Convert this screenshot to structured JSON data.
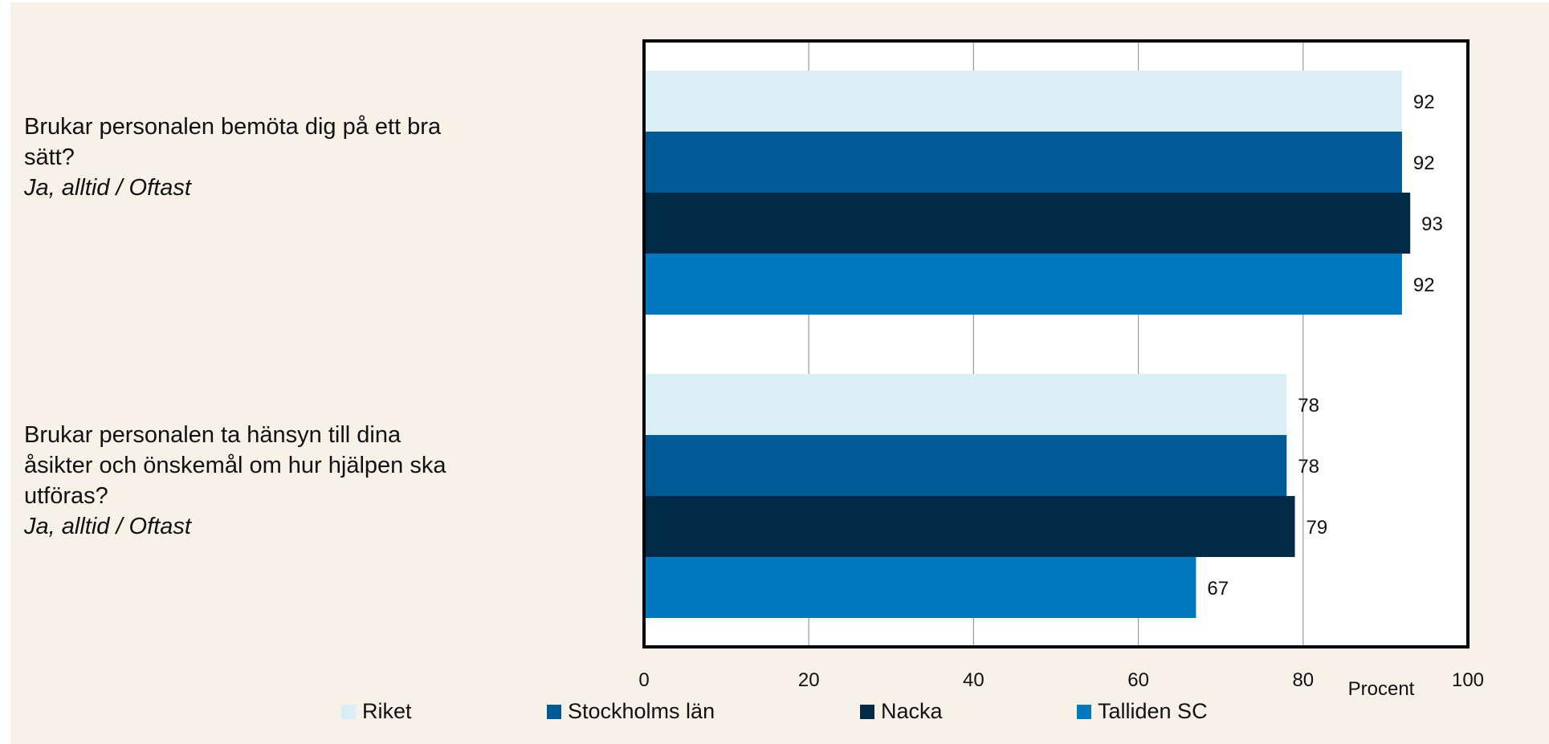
{
  "chart_data": {
    "type": "bar",
    "orientation": "horizontal",
    "categories": [
      {
        "title": "Brukar personalen bemöta dig på ett bra sätt?",
        "subtitle": "Ja, alltid / Oftast"
      },
      {
        "title": "Brukar personalen ta hänsyn till dina åsikter och önskemål om hur hjälpen ska utföras?",
        "subtitle": "Ja, alltid / Oftast"
      }
    ],
    "series": [
      {
        "name": "Riket",
        "color": "#daeef6",
        "values": [
          92,
          78
        ]
      },
      {
        "name": "Stockholms län",
        "color": "#005a96",
        "values": [
          92,
          78
        ]
      },
      {
        "name": "Nacka",
        "color": "#002a45",
        "values": [
          93,
          79
        ]
      },
      {
        "name": "Talliden SC",
        "color": "#0079c1",
        "values": [
          92,
          67
        ]
      }
    ],
    "xlabel": "Procent",
    "xlim": [
      0,
      100
    ],
    "xticks": [
      0,
      20,
      40,
      60,
      80,
      100
    ],
    "grid": "vertical",
    "legend": "bottom",
    "data_labels": true
  }
}
